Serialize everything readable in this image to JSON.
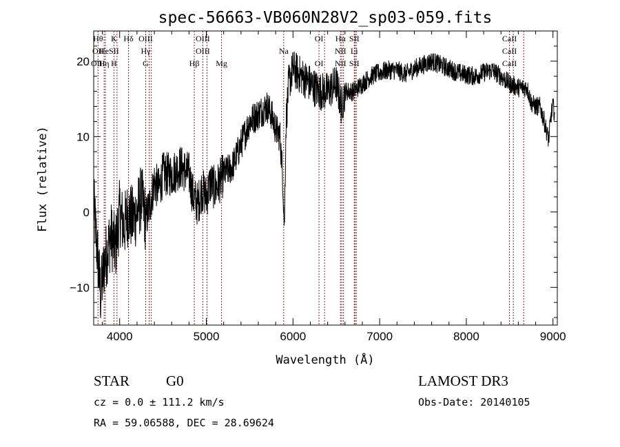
{
  "chart_data": {
    "type": "line",
    "title": "spec-56663-VB060N28V2_sp03-059.fits",
    "xlabel": "Wavelength (Å)",
    "ylabel": "Flux (relative)",
    "xlim": [
      3700,
      9050
    ],
    "ylim": [
      -15,
      24
    ],
    "xticks": [
      4000,
      5000,
      6000,
      7000,
      8000,
      9000
    ],
    "yticks": [
      -10,
      0,
      10,
      20
    ],
    "line_color": "#000000",
    "marker_color": "#8b1a1a",
    "anchors": [
      [
        3700,
        1
      ],
      [
        3740,
        -5
      ],
      [
        3780,
        -11
      ],
      [
        3820,
        -7
      ],
      [
        3860,
        -5
      ],
      [
        3900,
        -3
      ],
      [
        3950,
        -5
      ],
      [
        4000,
        0
      ],
      [
        4050,
        -2
      ],
      [
        4100,
        0
      ],
      [
        4150,
        -1
      ],
      [
        4200,
        0
      ],
      [
        4250,
        2
      ],
      [
        4300,
        -1
      ],
      [
        4350,
        1
      ],
      [
        4400,
        4
      ],
      [
        4450,
        3
      ],
      [
        4500,
        5
      ],
      [
        4600,
        5
      ],
      [
        4700,
        6
      ],
      [
        4800,
        5
      ],
      [
        4850,
        2
      ],
      [
        4900,
        1
      ],
      [
        4950,
        3
      ],
      [
        5000,
        2
      ],
      [
        5050,
        4
      ],
      [
        5100,
        3
      ],
      [
        5150,
        4
      ],
      [
        5200,
        5
      ],
      [
        5300,
        6
      ],
      [
        5400,
        9
      ],
      [
        5500,
        12
      ],
      [
        5600,
        13
      ],
      [
        5700,
        14
      ],
      [
        5750,
        13
      ],
      [
        5800,
        11
      ],
      [
        5850,
        10
      ],
      [
        5880,
        5
      ],
      [
        5900,
        -2
      ],
      [
        5910,
        5
      ],
      [
        5920,
        12
      ],
      [
        5950,
        17
      ],
      [
        6000,
        19
      ],
      [
        6100,
        18
      ],
      [
        6200,
        17
      ],
      [
        6300,
        16
      ],
      [
        6400,
        16
      ],
      [
        6500,
        17
      ],
      [
        6560,
        14
      ],
      [
        6600,
        16
      ],
      [
        6700,
        16
      ],
      [
        6800,
        17
      ],
      [
        6900,
        18
      ],
      [
        7000,
        18.5
      ],
      [
        7100,
        18.8
      ],
      [
        7200,
        18.8
      ],
      [
        7300,
        18.3
      ],
      [
        7400,
        19
      ],
      [
        7500,
        19.5
      ],
      [
        7600,
        20
      ],
      [
        7700,
        19.5
      ],
      [
        7800,
        19
      ],
      [
        7900,
        18.5
      ],
      [
        8000,
        18.2
      ],
      [
        8100,
        18
      ],
      [
        8200,
        18.5
      ],
      [
        8300,
        18.8
      ],
      [
        8400,
        18
      ],
      [
        8500,
        17
      ],
      [
        8600,
        16.5
      ],
      [
        8700,
        16.5
      ],
      [
        8750,
        14.5
      ],
      [
        8800,
        14
      ],
      [
        8850,
        14
      ],
      [
        8900,
        12
      ],
      [
        8950,
        9.5
      ],
      [
        8980,
        13
      ],
      [
        9000,
        14
      ],
      [
        9020,
        13
      ]
    ],
    "spectral_lines": [
      {
        "labels": [
          "Hθ",
          "OII",
          "OIII"
        ],
        "wavelengths": [
          3750
        ]
      },
      {
        "labels": [
          "",
          "He",
          "Hη"
        ],
        "wavelengths": [
          3820,
          3835
        ]
      },
      {
        "labels": [
          "K",
          "SII",
          "H"
        ],
        "wavelengths": [
          3934,
          3969
        ]
      },
      {
        "labels": [
          "Hδ",
          "",
          ""
        ],
        "wavelengths": [
          4102
        ]
      },
      {
        "labels": [
          "OIII",
          "Hγ",
          "G"
        ],
        "wavelengths": [
          4300,
          4340,
          4363
        ]
      },
      {
        "labels": [
          "OIII",
          "OIII",
          ""
        ],
        "wavelengths": [
          4959,
          5007
        ]
      },
      {
        "labels": [
          "",
          "",
          "Hβ"
        ],
        "wavelengths": [
          4861
        ]
      },
      {
        "labels": [
          "",
          "",
          "Mg"
        ],
        "wavelengths": [
          5175
        ]
      },
      {
        "labels": [
          "",
          "Na",
          ""
        ],
        "wavelengths": [
          5893
        ]
      },
      {
        "labels": [
          "OI",
          "",
          "OI"
        ],
        "wavelengths": [
          6300,
          6364
        ]
      },
      {
        "labels": [
          "Hα",
          "NII",
          "NII"
        ],
        "wavelengths": [
          6548,
          6563,
          6583
        ]
      },
      {
        "labels": [
          "SII",
          "Li",
          "SII"
        ],
        "wavelengths": [
          6707,
          6716,
          6731
        ]
      },
      {
        "labels": [
          "CaII",
          "CaII",
          "CaII"
        ],
        "wavelengths": [
          8498,
          8542,
          8662
        ]
      }
    ]
  },
  "info": {
    "obj_class": "STAR",
    "subclass": "G0",
    "cz": "cz = 0.0 ± 111.2 km/s",
    "radec": "RA =  59.06588, DEC =  28.69624",
    "survey": "LAMOST DR3",
    "obsdate": "Obs-Date: 20140105"
  }
}
